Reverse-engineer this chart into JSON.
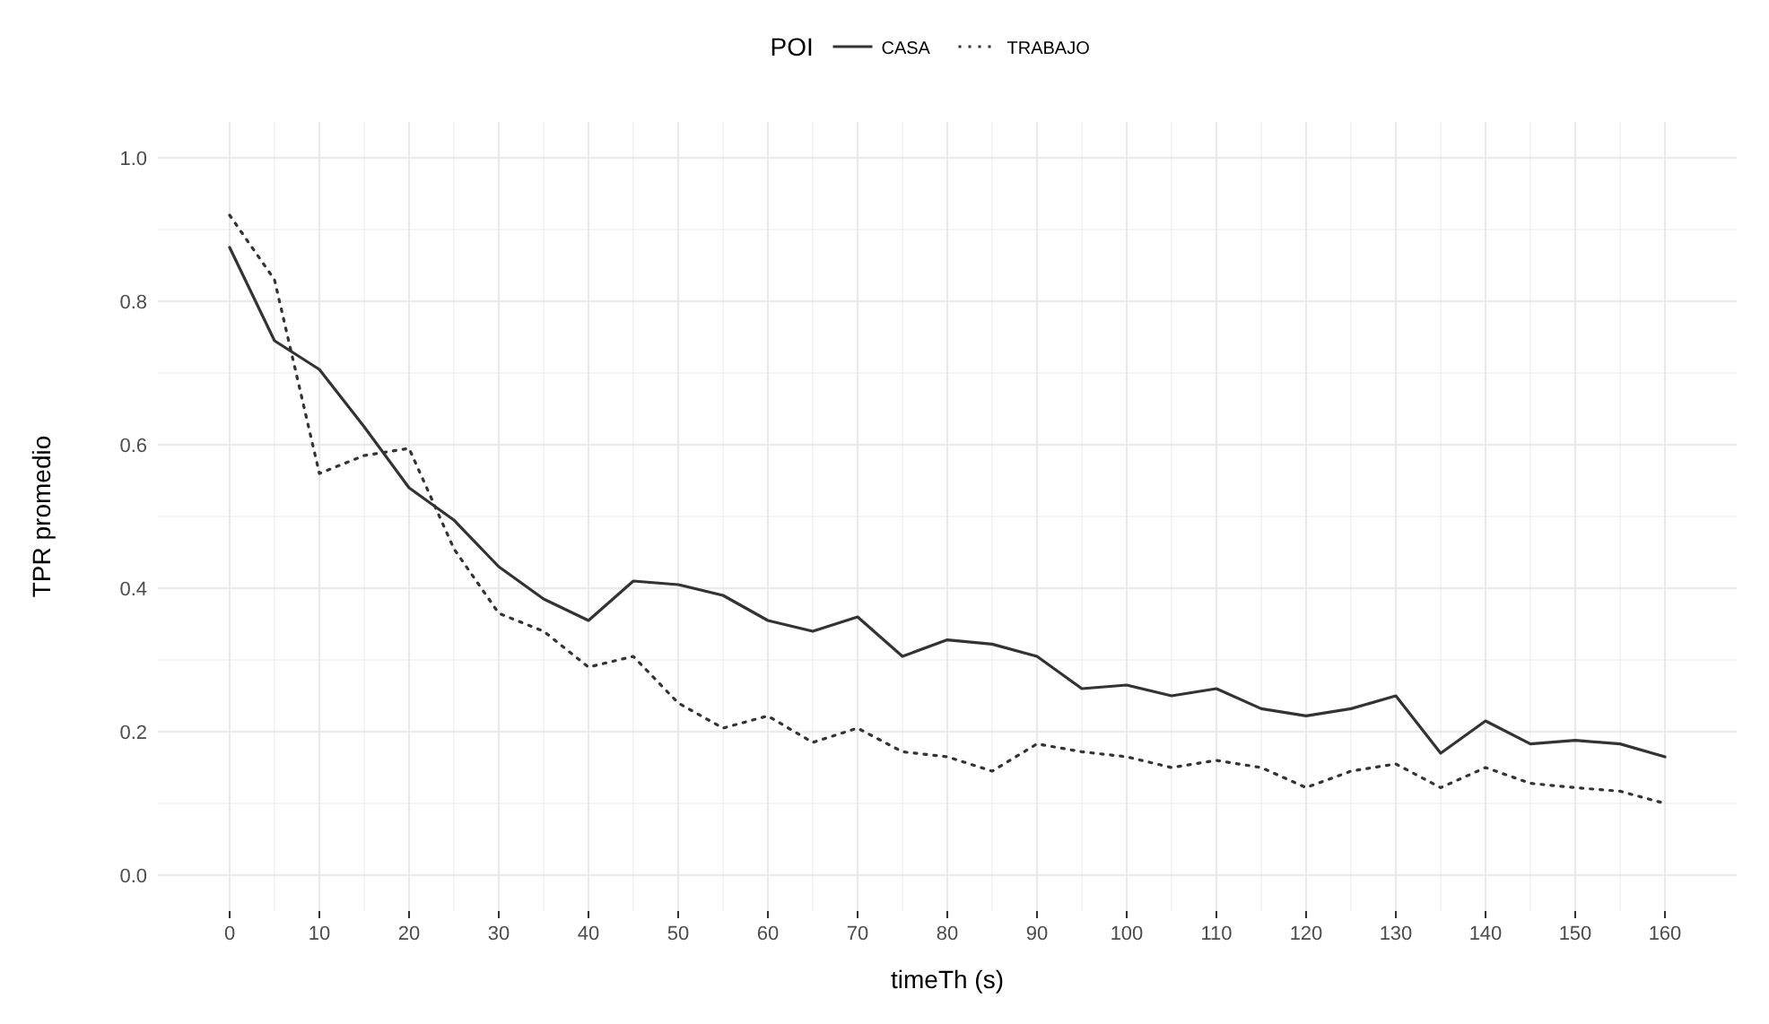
{
  "chart_data": {
    "type": "line",
    "xlabel": "timeTh (s)",
    "ylabel": "TPR promedio",
    "legend_title": "POI",
    "legend": "top",
    "grid": true,
    "x": [
      0,
      5,
      10,
      15,
      20,
      25,
      30,
      35,
      40,
      45,
      50,
      55,
      60,
      65,
      70,
      75,
      80,
      85,
      90,
      95,
      100,
      105,
      110,
      115,
      120,
      125,
      130,
      135,
      140,
      145,
      150,
      155,
      160
    ],
    "xlim": [
      -8,
      168
    ],
    "ylim": [
      -0.05,
      1.05
    ],
    "xticks": [
      0,
      10,
      20,
      30,
      40,
      50,
      60,
      70,
      80,
      90,
      100,
      110,
      120,
      130,
      140,
      150,
      160
    ],
    "yticks": [
      {
        "value": 0,
        "label": "0.0"
      },
      {
        "value": 0.2,
        "label": "0.2"
      },
      {
        "value": 0.4,
        "label": "0.4"
      },
      {
        "value": 0.6,
        "label": "0.6"
      },
      {
        "value": 0.8,
        "label": "0.8"
      },
      {
        "value": 1,
        "label": "1.0"
      }
    ],
    "series": [
      {
        "name": "CASA",
        "color": "#333333",
        "line_style": "solid",
        "values": [
          0.875,
          0.745,
          0.705,
          0.625,
          0.54,
          0.495,
          0.43,
          0.385,
          0.355,
          0.41,
          0.405,
          0.39,
          0.355,
          0.34,
          0.36,
          0.305,
          0.328,
          0.322,
          0.305,
          0.26,
          0.265,
          0.25,
          0.26,
          0.232,
          0.222,
          0.232,
          0.25,
          0.17,
          0.215,
          0.183,
          0.188,
          0.183,
          0.165
        ]
      },
      {
        "name": "TRABAJO",
        "color": "#333333",
        "line_style": "dotted",
        "values": [
          0.92,
          0.83,
          0.56,
          0.585,
          0.595,
          0.455,
          0.365,
          0.34,
          0.29,
          0.305,
          0.24,
          0.205,
          0.222,
          0.185,
          0.205,
          0.172,
          0.165,
          0.145,
          0.183,
          0.172,
          0.165,
          0.15,
          0.16,
          0.15,
          0.122,
          0.145,
          0.155,
          0.122,
          0.15,
          0.128,
          0.122,
          0.117,
          0.1
        ]
      }
    ]
  }
}
